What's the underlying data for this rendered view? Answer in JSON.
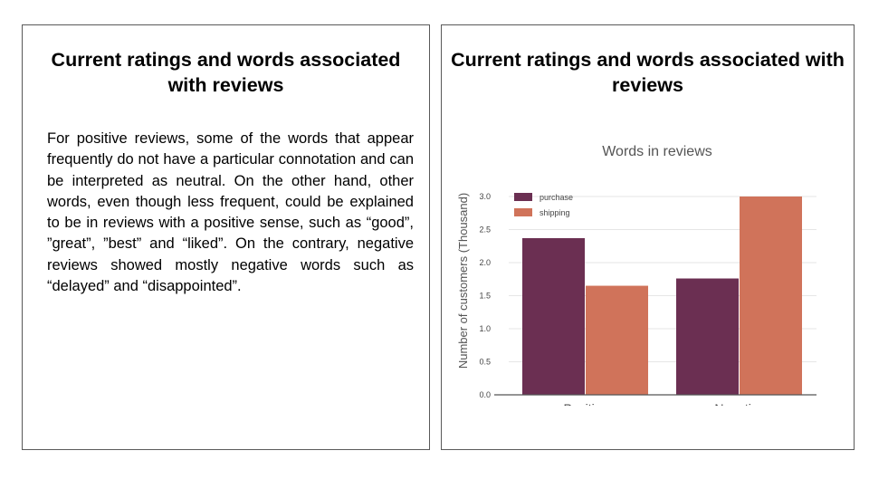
{
  "left_panel": {
    "title": "Current ratings and words associated with reviews",
    "body": "For positive reviews, some of the words that appear frequently do not have a particular connotation and can be interpreted as neutral. On the other hand, other words, even though less frequent, could be explained to be in reviews with a positive sense, such as “good”, ”great”, ”best” and “liked”. On the contrary, negative reviews showed mostly negative words such as “delayed” and “disappointed”."
  },
  "right_panel": {
    "title": "Current ratings and words associated with reviews"
  },
  "chart_data": {
    "type": "bar",
    "title": "Words in reviews",
    "xlabel": "",
    "ylabel": "Number of customers (Thousand)",
    "categories": [
      "Positive",
      "Negative"
    ],
    "series": [
      {
        "name": "purchase",
        "values": [
          2.37,
          1.76
        ],
        "color": "#6b2f52"
      },
      {
        "name": "shipping",
        "values": [
          1.65,
          3.0
        ],
        "color": "#d0735a"
      }
    ],
    "ylim": [
      0,
      3.0
    ],
    "yticks": [
      "0.0",
      "0.5",
      "1.0",
      "1.5",
      "2.0",
      "2.5",
      "3.0"
    ],
    "grid": true,
    "legend_position": "top-left"
  }
}
